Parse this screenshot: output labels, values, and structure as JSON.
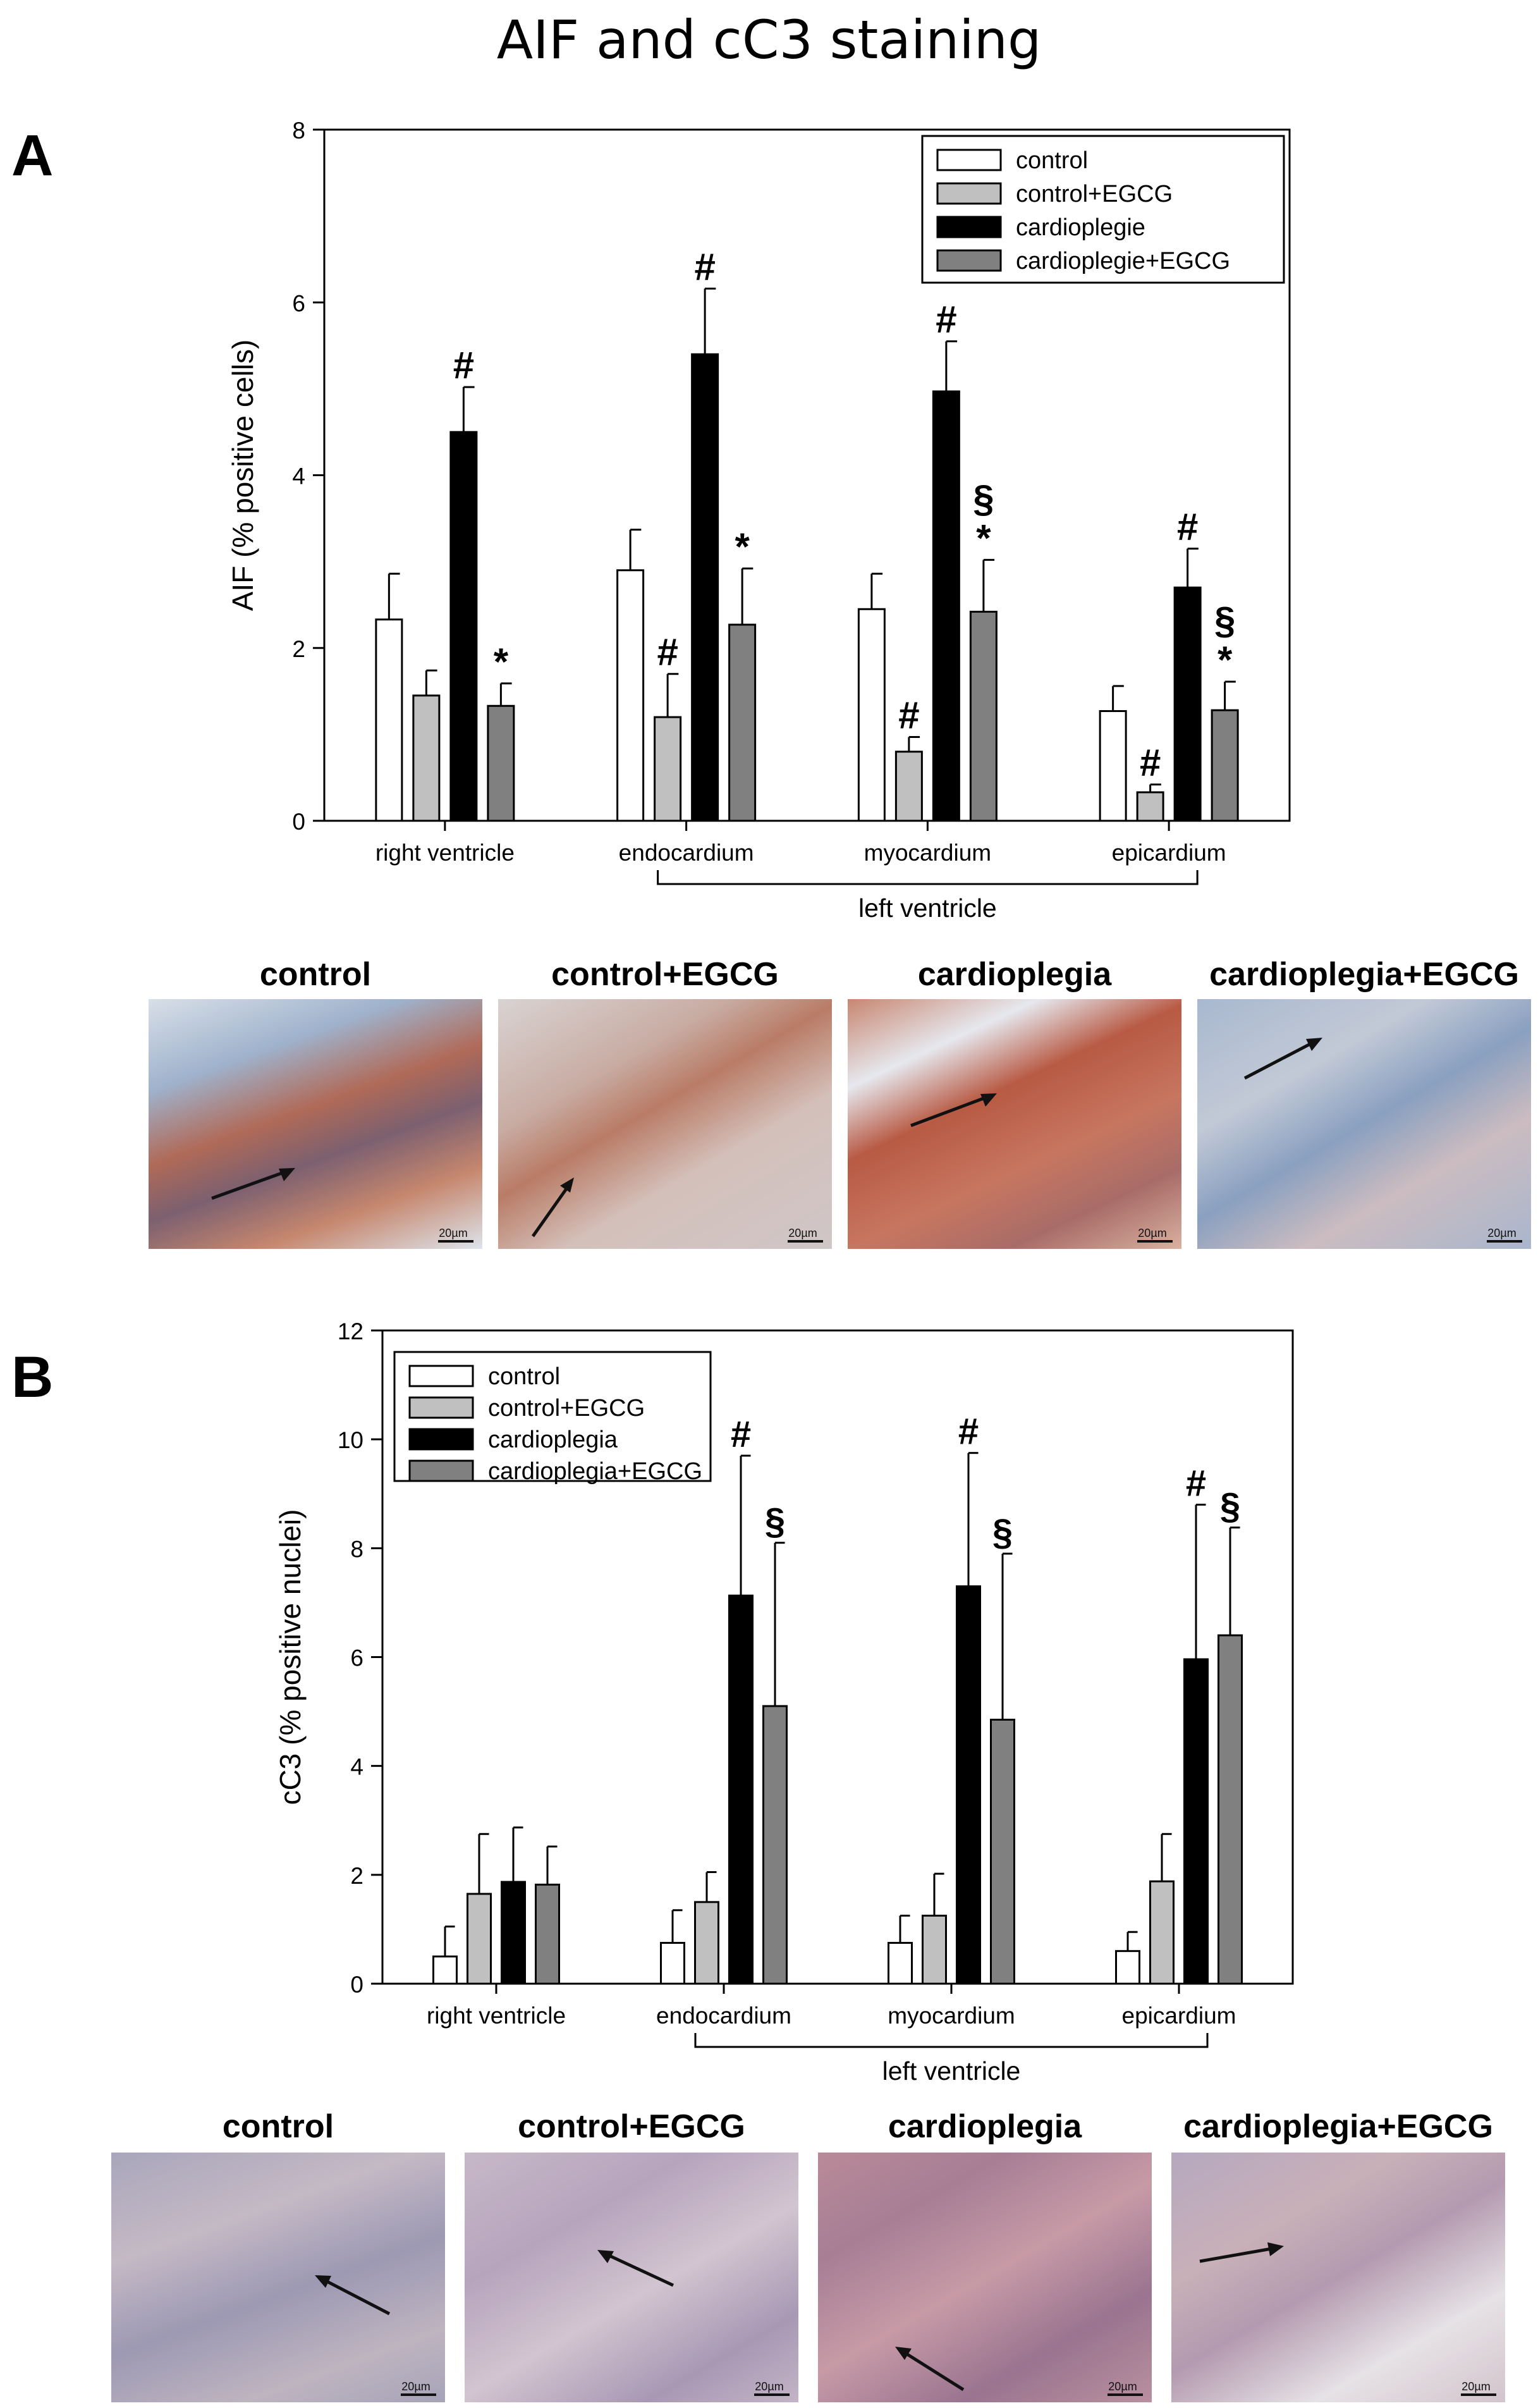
{
  "title": "AIF and cC3 staining",
  "panel_a": {
    "letter": "A",
    "micrographs": [
      {
        "label": "control",
        "scale": "20µm"
      },
      {
        "label": "control+EGCG",
        "scale": "20µm"
      },
      {
        "label": "cardioplegia",
        "scale": "20µm"
      },
      {
        "label": "cardioplegia+EGCG",
        "scale": "20µm"
      }
    ]
  },
  "panel_b": {
    "letter": "B",
    "micrographs": [
      {
        "label": "control",
        "scale": "20µm"
      },
      {
        "label": "control+EGCG",
        "scale": "20µm"
      },
      {
        "label": "cardioplegia",
        "scale": "20µm"
      },
      {
        "label": "cardioplegia+EGCG",
        "scale": "20µm"
      }
    ]
  },
  "chart_data": [
    {
      "type": "bar",
      "title": "",
      "ylabel": "AIF (% positive cells)",
      "xlabel": "",
      "ylim": [
        0,
        8
      ],
      "yticks": [
        0,
        2,
        4,
        6,
        8
      ],
      "categories": [
        "right ventricle",
        "endocardium",
        "myocardium",
        "epicardium"
      ],
      "group_label": "left ventricle",
      "legend_position": "top-right",
      "series": [
        {
          "name": "control",
          "color": "#ffffff",
          "values": [
            2.33,
            2.9,
            2.45,
            1.27
          ],
          "errors": [
            0.53,
            0.47,
            0.41,
            0.29
          ],
          "annotations": [
            "",
            "",
            "",
            ""
          ]
        },
        {
          "name": "control+EGCG",
          "color": "#c0c0c0",
          "values": [
            1.45,
            1.2,
            0.8,
            0.33
          ],
          "errors": [
            0.29,
            0.5,
            0.17,
            0.09
          ],
          "annotations": [
            "",
            "#",
            "#",
            "#"
          ]
        },
        {
          "name": "cardioplegie",
          "color": "#000000",
          "values": [
            4.5,
            5.4,
            4.97,
            2.7
          ],
          "errors": [
            0.52,
            0.76,
            0.58,
            0.45
          ],
          "annotations": [
            "#",
            "#",
            "#",
            "#"
          ]
        },
        {
          "name": "cardioplegie+EGCG",
          "color": "#808080",
          "values": [
            1.33,
            2.27,
            2.42,
            1.28
          ],
          "errors": [
            0.26,
            0.65,
            0.6,
            0.33
          ],
          "annotations": [
            "*",
            "*",
            "§*",
            "§*"
          ]
        }
      ]
    },
    {
      "type": "bar",
      "title": "",
      "ylabel": "cC3 (% positive nuclei)",
      "xlabel": "",
      "ylim": [
        0,
        12
      ],
      "yticks": [
        0,
        2,
        4,
        6,
        8,
        10,
        12
      ],
      "categories": [
        "right ventricle",
        "endocardium",
        "myocardium",
        "epicardium"
      ],
      "group_label": "left ventricle",
      "legend_position": "top-left",
      "series": [
        {
          "name": "control",
          "color": "#ffffff",
          "values": [
            0.5,
            0.75,
            0.75,
            0.6
          ],
          "errors": [
            0.55,
            0.6,
            0.5,
            0.35
          ],
          "annotations": [
            "",
            "",
            "",
            ""
          ]
        },
        {
          "name": "control+EGCG",
          "color": "#c0c0c0",
          "values": [
            1.65,
            1.5,
            1.25,
            1.88
          ],
          "errors": [
            1.1,
            0.55,
            0.77,
            0.87
          ],
          "annotations": [
            "",
            "",
            "",
            ""
          ]
        },
        {
          "name": "cardioplegia",
          "color": "#000000",
          "values": [
            1.87,
            7.13,
            7.3,
            5.96
          ],
          "errors": [
            1.0,
            2.57,
            2.45,
            2.84
          ],
          "annotations": [
            "",
            "#",
            "#",
            "#"
          ]
        },
        {
          "name": "cardioplegia+EGCG",
          "color": "#808080",
          "values": [
            1.82,
            5.1,
            4.85,
            6.4
          ],
          "errors": [
            0.7,
            3.0,
            3.05,
            1.98
          ],
          "annotations": [
            "",
            "§",
            "§",
            "§"
          ]
        }
      ]
    }
  ]
}
